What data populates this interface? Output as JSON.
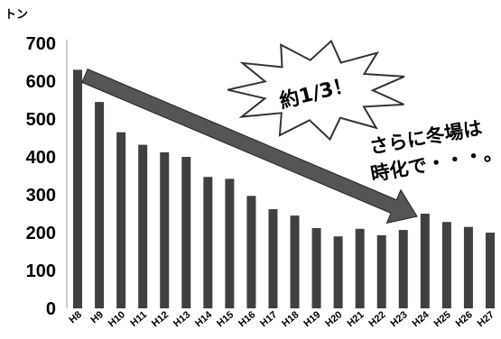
{
  "chart_data": {
    "type": "bar",
    "ylabel": "トン",
    "ylim": [
      0,
      700
    ],
    "yticks": [
      0,
      100,
      200,
      300,
      400,
      500,
      600,
      700
    ],
    "categories": [
      "H8",
      "H9",
      "H10",
      "H11",
      "H12",
      "H13",
      "H14",
      "H15",
      "H16",
      "H17",
      "H18",
      "H19",
      "H20",
      "H21",
      "H22",
      "H23",
      "H24",
      "H25",
      "H26",
      "H27"
    ],
    "values": [
      630,
      545,
      465,
      432,
      412,
      400,
      347,
      342,
      297,
      262,
      245,
      212,
      190,
      210,
      193,
      207,
      250,
      228,
      215,
      200
    ],
    "bar_color": "#404040",
    "annotations": {
      "burst": "約1/3！",
      "note_line1": "さらに冬場は",
      "note_line2": "時化で・・・。"
    }
  }
}
